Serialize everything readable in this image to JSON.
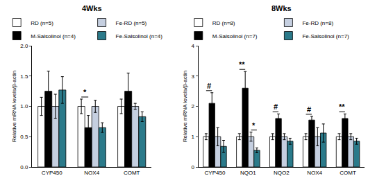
{
  "chart_data": [
    {
      "type": "bar",
      "title": "4Wks",
      "y_label": "Relative mRNA levels/β-actin",
      "categories": [
        "CYP450",
        "NOX4",
        "COMT"
      ],
      "ylim": [
        0,
        2
      ],
      "yticks": [
        {
          "value": 0,
          "label": "0.0"
        },
        {
          "value": 0.5,
          "label": "0.5"
        },
        {
          "value": 1,
          "label": "1.0"
        },
        {
          "value": 1.5,
          "label": "1.5"
        },
        {
          "value": 2,
          "label": "2.0"
        }
      ],
      "grid": false,
      "series": [
        {
          "name": "RD (n=5)",
          "color": "#ffffff",
          "values": [
            1.0,
            1.0,
            1.0
          ],
          "errors": [
            0.15,
            0.12,
            0.12
          ]
        },
        {
          "name": "M-Salsolinol (n=4)",
          "color": "#000000",
          "values": [
            1.25,
            0.65,
            1.25
          ],
          "errors": [
            0.33,
            0.2,
            0.3
          ]
        },
        {
          "name": "Fe-RD (n=5)",
          "color": "#c5cfe0",
          "values": [
            1.0,
            1.0,
            1.0
          ],
          "errors": [
            0.2,
            0.1,
            0.05
          ]
        },
        {
          "name": "Fe-Salsolinol (n=4)",
          "color": "#2b7a8a",
          "values": [
            1.27,
            0.65,
            0.83
          ],
          "errors": [
            0.22,
            0.08,
            0.08
          ]
        }
      ],
      "significance": [
        {
          "category": "NOX4",
          "series": [
            "RD (n=5)",
            "M-Salsolinol (n=4)"
          ],
          "label": "*"
        }
      ]
    },
    {
      "type": "bar",
      "title": "8Wks",
      "y_label": "Relative mRNA levels/β-actin",
      "categories": [
        "CYP450",
        "NQO1",
        "NQO2",
        "NOX4",
        "COMT"
      ],
      "ylim": [
        0,
        4
      ],
      "yticks": [
        0,
        1,
        2,
        3,
        4
      ],
      "grid": false,
      "series": [
        {
          "name": "RD (n=8)",
          "color": "#ffffff",
          "values": [
            1.0,
            1.0,
            1.0,
            1.0,
            1.0
          ],
          "errors": [
            0.1,
            0.1,
            0.1,
            0.1,
            0.1
          ]
        },
        {
          "name": "M-Salsolinol (n=7)",
          "color": "#000000",
          "values": [
            2.1,
            2.6,
            1.6,
            1.55,
            1.6
          ],
          "errors": [
            0.35,
            0.55,
            0.15,
            0.12,
            0.15
          ]
        },
        {
          "name": "Fe-RD (n=8)",
          "color": "#c5cfe0",
          "values": [
            1.0,
            1.0,
            1.0,
            1.0,
            1.0
          ],
          "errors": [
            0.3,
            0.15,
            0.1,
            0.3,
            0.1
          ]
        },
        {
          "name": "Fe-Salsolinol (n=7)",
          "color": "#2b7a8a",
          "values": [
            0.68,
            0.55,
            0.85,
            1.12,
            0.85
          ],
          "errors": [
            0.2,
            0.08,
            0.1,
            0.3,
            0.1
          ]
        }
      ],
      "significance": [
        {
          "category": "CYP450",
          "series": [
            "RD (n=8)",
            "M-Salsolinol (n=7)"
          ],
          "label": "#"
        },
        {
          "category": "NQO1",
          "series": [
            "RD (n=8)",
            "M-Salsolinol (n=7)"
          ],
          "label": "**"
        },
        {
          "category": "NQO1",
          "series": [
            "Fe-RD (n=8)",
            "Fe-Salsolinol (n=7)"
          ],
          "label": "*"
        },
        {
          "category": "NQO2",
          "series": [
            "RD (n=8)",
            "M-Salsolinol (n=7)"
          ],
          "label": "#"
        },
        {
          "category": "NOX4",
          "series": [
            "RD (n=8)",
            "M-Salsolinol (n=7)"
          ],
          "label": "#"
        },
        {
          "category": "COMT",
          "series": [
            "RD (n=8)",
            "M-Salsolinol (n=7)"
          ],
          "label": "**"
        }
      ]
    }
  ]
}
